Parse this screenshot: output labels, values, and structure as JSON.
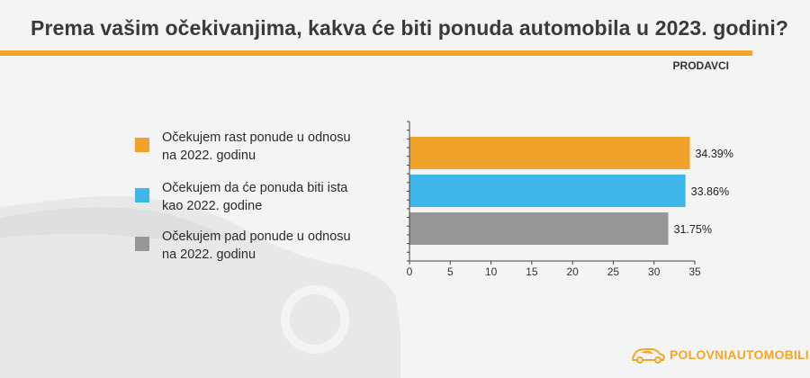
{
  "header": {
    "title": "Prema vašim očekivanjima, kakva će biti ponuda automobila u 2023. godini?",
    "subtitle": "PRODAVCI"
  },
  "legend": {
    "items": [
      {
        "label": "Očekujem rast ponude u odnosu na 2022. godinu",
        "color": "#f0a22a"
      },
      {
        "label": "Očekujem da će ponuda biti ista kao 2022. godine",
        "color": "#3fb6ea"
      },
      {
        "label": "Očekujem pad ponude u odnosu na 2022. godinu",
        "color": "#979797"
      }
    ]
  },
  "chart_data": {
    "type": "bar",
    "orientation": "horizontal",
    "categories": [
      "Očekujem rast ponude u odnosu na 2022. godinu",
      "Očekujem da će ponuda biti ista kao 2022. godine",
      "Očekujem pad ponude u odnosu na 2022. godinu"
    ],
    "values": [
      34.39,
      33.86,
      31.75
    ],
    "data_labels": [
      "34.39%",
      "33.86%",
      "31.75%"
    ],
    "colors": [
      "#f0a22a",
      "#3fb6ea",
      "#979797"
    ],
    "xlim": [
      0,
      35
    ],
    "x_ticks": [
      0,
      5,
      10,
      15,
      20,
      25,
      30,
      35
    ],
    "grid": false,
    "title": "",
    "xlabel": "",
    "ylabel": ""
  },
  "brand": {
    "logo_text": "POLOVNIAUTOMOBILI",
    "icon": "car-logo-icon"
  }
}
